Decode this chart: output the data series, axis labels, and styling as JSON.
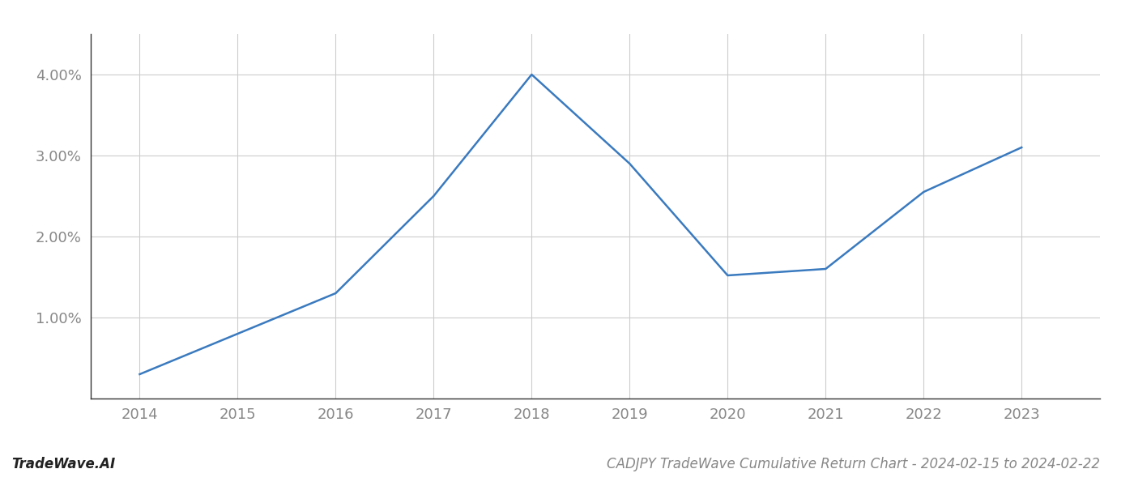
{
  "x": [
    2014,
    2015,
    2016,
    2017,
    2018,
    2019,
    2020,
    2021,
    2022,
    2023
  ],
  "y": [
    0.3,
    0.8,
    1.3,
    2.5,
    4.0,
    2.9,
    1.52,
    1.6,
    2.55,
    3.1
  ],
  "line_color": "#3a7abf",
  "line_width": 1.8,
  "background_color": "#ffffff",
  "grid_color": "#cccccc",
  "title": "CADJPY TradeWave Cumulative Return Chart - 2024-02-15 to 2024-02-22",
  "footer_left": "TradeWave.AI",
  "xlim": [
    2013.5,
    2023.8
  ],
  "ylim": [
    0.0,
    4.5
  ],
  "yticks": [
    1.0,
    2.0,
    3.0,
    4.0
  ],
  "ytick_labels": [
    "1.00%",
    "2.00%",
    "3.00%",
    "4.00%"
  ],
  "xticks": [
    2014,
    2015,
    2016,
    2017,
    2018,
    2019,
    2020,
    2021,
    2022,
    2023
  ],
  "tick_label_color": "#888888",
  "tick_label_fontsize": 13,
  "title_fontsize": 12,
  "footer_fontsize": 12,
  "spine_color": "#333333"
}
